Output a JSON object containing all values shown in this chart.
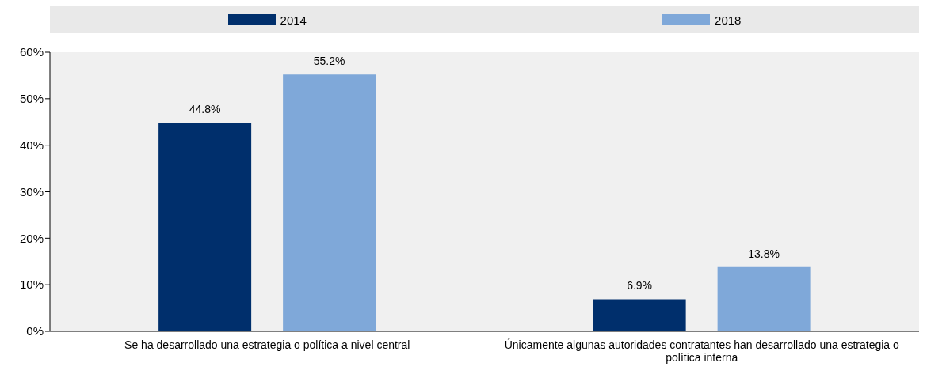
{
  "chart_data": {
    "type": "bar",
    "categories": [
      "Se ha desarrollado una estrategia o política a nivel central",
      "Únicamente algunas autoridades contratantes han desarrollado una estrategia o política interna"
    ],
    "series": [
      {
        "name": "2014",
        "color": "#002f6c",
        "values": [
          44.8,
          6.9
        ],
        "value_labels": [
          "44.8%",
          "6.9%"
        ]
      },
      {
        "name": "2018",
        "color": "#7fa8d9",
        "values": [
          55.2,
          13.8
        ],
        "value_labels": [
          "55.2%",
          "13.8%"
        ]
      }
    ],
    "ylim": [
      0,
      60
    ],
    "yticks": [
      {
        "value": 0,
        "label": "0%"
      },
      {
        "value": 10,
        "label": "10%"
      },
      {
        "value": 20,
        "label": "20%"
      },
      {
        "value": 30,
        "label": "30%"
      },
      {
        "value": 40,
        "label": "40%"
      },
      {
        "value": 50,
        "label": "50%"
      },
      {
        "value": 60,
        "label": "60%"
      }
    ],
    "grid": false,
    "legend": "top"
  }
}
